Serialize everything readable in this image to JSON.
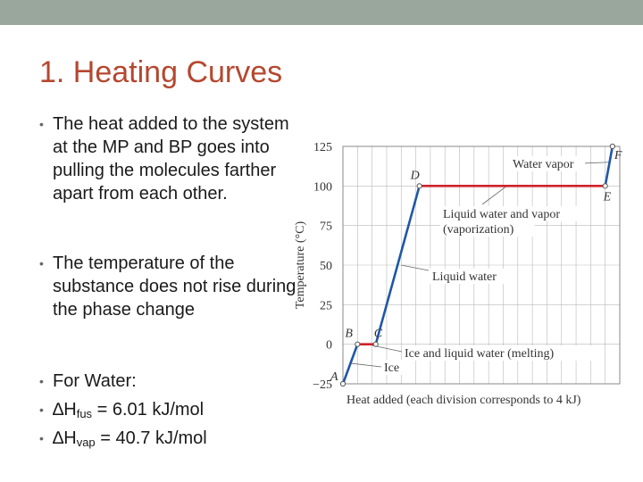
{
  "slide": {
    "title": "1. Heating Curves",
    "bullets": [
      "The heat added to the system at the MP and BP goes into pulling the molecules farther apart from each other.",
      "The temperature of the substance does not rise during the phase change",
      "For Water:"
    ],
    "delta_symbol": "∆",
    "hfus": {
      "letter": "H",
      "sub": "fus",
      "value": " = 6.01 kJ/mol"
    },
    "hvap": {
      "letter": "H",
      "sub": "vap",
      "value": " = 40.7 kJ/mol"
    }
  },
  "chart_data": {
    "type": "line",
    "xlabel": "Heat added (each division corresponds to 4 kJ)",
    "ylabel": "Temperature (°C)",
    "ylim": [
      -25,
      125
    ],
    "yticks": [
      -25,
      0,
      25,
      50,
      75,
      100,
      125
    ],
    "xlim": [
      0,
      76
    ],
    "grid": true,
    "points": [
      {
        "label": "A",
        "x": 0,
        "y": -25
      },
      {
        "label": "B",
        "x": 4,
        "y": 0
      },
      {
        "label": "C",
        "x": 9,
        "y": 0
      },
      {
        "label": "D",
        "x": 21,
        "y": 100
      },
      {
        "label": "E",
        "x": 72,
        "y": 100
      },
      {
        "label": "F",
        "x": 74,
        "y": 125
      }
    ],
    "segments": [
      {
        "from": 0,
        "to": 1,
        "phase": "solid"
      },
      {
        "from": 1,
        "to": 2,
        "phase": "transition"
      },
      {
        "from": 2,
        "to": 3,
        "phase": "solid"
      },
      {
        "from": 3,
        "to": 4,
        "phase": "transition"
      },
      {
        "from": 4,
        "to": 5,
        "phase": "solid"
      }
    ],
    "annotations": [
      {
        "text": [
          "Water vapor"
        ],
        "point": [
          73,
          115
        ]
      },
      {
        "text": [
          "Liquid water and vapor",
          "(vaporization)"
        ],
        "point": [
          45,
          100
        ]
      },
      {
        "text": [
          "Liquid water"
        ],
        "point": [
          16,
          50
        ]
      },
      {
        "text": [
          "Ice and liquid water (melting)"
        ],
        "point": [
          6.5,
          0
        ]
      },
      {
        "text": [
          "Ice"
        ],
        "point": [
          2,
          -12
        ]
      }
    ],
    "colors": {
      "line": "#1f57a6",
      "transition": "#d0232a",
      "grid": "#b9b9b9",
      "text": "#333333"
    }
  }
}
